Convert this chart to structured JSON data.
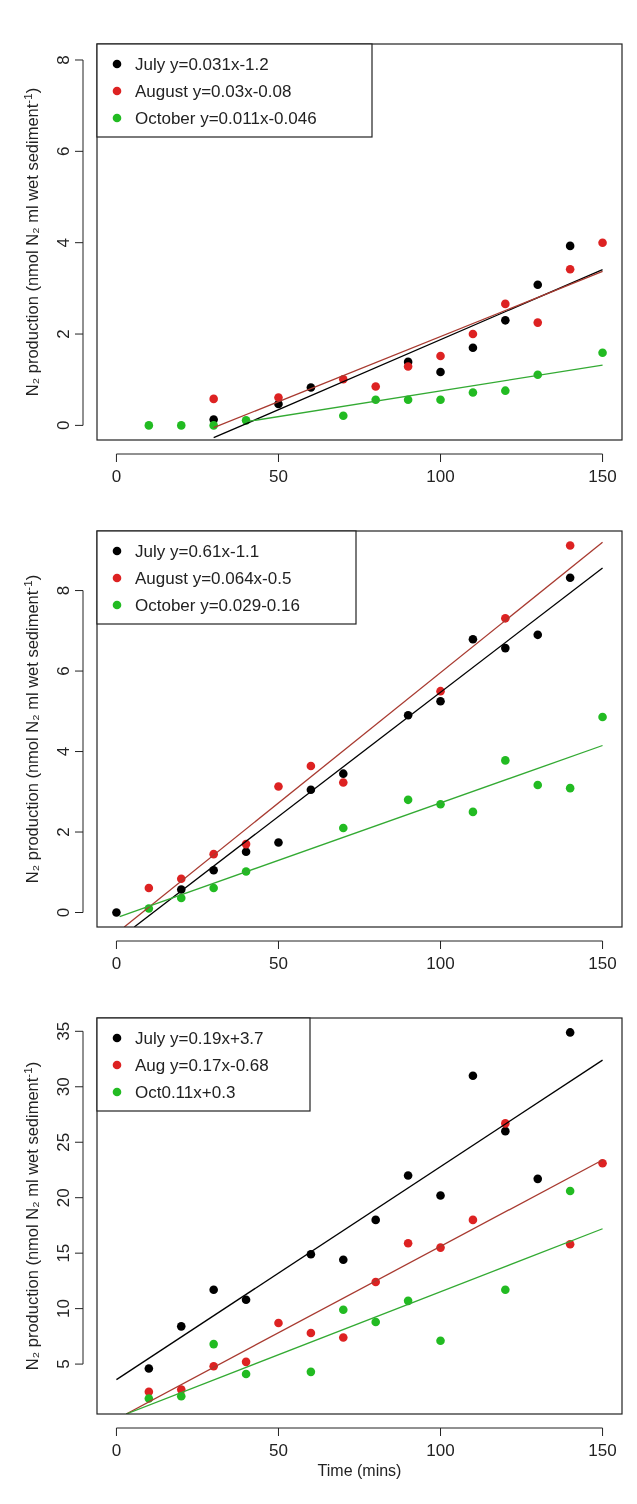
{
  "chart_data": [
    {
      "type": "scatter",
      "ylabel": "N₂ production  (nmol N₂ ml wet sediment$^{-1}$)",
      "xlim": [
        -6,
        156
      ],
      "ylim": [
        -0.32,
        8.35
      ],
      "xticks": [
        0,
        50,
        100,
        150
      ],
      "yticks": [
        0,
        2,
        4,
        6,
        8
      ],
      "legend": "top left",
      "series": [
        {
          "name": "July y=0.031x-1.2",
          "color": "#000000",
          "marker": "circle",
          "x": [
            30,
            50,
            60,
            90,
            100,
            110,
            120,
            130,
            140
          ],
          "values": [
            0.13,
            0.47,
            0.83,
            1.39,
            1.17,
            1.7,
            2.3,
            3.08,
            3.93
          ]
        },
        {
          "name": "August y=0.03x-0.08",
          "color": "#dd2222",
          "marker": "circle",
          "x": [
            30,
            50,
            70,
            80,
            90,
            100,
            110,
            120,
            130,
            140,
            150
          ],
          "values": [
            0.58,
            0.61,
            1.01,
            0.85,
            1.29,
            1.52,
            2.0,
            2.66,
            2.25,
            3.42,
            4.0
          ]
        },
        {
          "name": "October y=0.011x-0.046",
          "color": "#22bb22",
          "marker": "circle",
          "x": [
            10,
            20,
            30,
            40,
            70,
            80,
            90,
            100,
            110,
            120,
            130,
            150
          ],
          "values": [
            0,
            0,
            0,
            0.11,
            0.21,
            0.56,
            0.56,
            0.56,
            0.72,
            0.76,
            1.11,
            1.59
          ]
        },
        {
          "type": "line",
          "color": "#000000",
          "x": [
            30,
            150
          ],
          "values": [
            -0.27,
            3.41
          ]
        },
        {
          "type": "line",
          "color": "#a83a30",
          "x": [
            30,
            150
          ],
          "values": [
            -0.05,
            3.37
          ]
        },
        {
          "type": "line",
          "color": "#33aa33",
          "x": [
            40,
            150
          ],
          "values": [
            0.08,
            1.32
          ]
        }
      ]
    },
    {
      "type": "scatter",
      "ylabel": "N₂ production  (nmol N₂ ml wet sediment$^{-1}$)",
      "xlim": [
        -6,
        156
      ],
      "ylim": [
        -0.36,
        9.48
      ],
      "xticks": [
        0,
        50,
        100,
        150
      ],
      "yticks": [
        0,
        2,
        4,
        6,
        8
      ],
      "legend": "top left",
      "series": [
        {
          "name": "July y=0.61x-1.1",
          "color": "#000000",
          "marker": "circle",
          "x": [
            0,
            20,
            30,
            40,
            50,
            60,
            70,
            90,
            100,
            110,
            120,
            130,
            140
          ],
          "values": [
            0,
            0.57,
            1.05,
            1.51,
            1.74,
            3.05,
            3.45,
            4.9,
            5.25,
            6.79,
            6.57,
            6.9,
            8.32
          ]
        },
        {
          "name": "August y=0.064x-0.5",
          "color": "#dd2222",
          "marker": "circle",
          "x": [
            10,
            20,
            30,
            40,
            50,
            60,
            70,
            100,
            120,
            140
          ],
          "values": [
            0.61,
            0.84,
            1.45,
            1.7,
            3.13,
            3.64,
            3.23,
            5.5,
            7.31,
            9.12
          ]
        },
        {
          "name": "October y=0.029-0.16",
          "color": "#22bb22",
          "marker": "circle",
          "x": [
            10,
            20,
            30,
            40,
            70,
            90,
            100,
            110,
            120,
            130,
            140,
            150
          ],
          "values": [
            0.1,
            0.36,
            0.61,
            1.02,
            2.1,
            2.8,
            2.69,
            2.5,
            3.78,
            3.17,
            3.09,
            4.86
          ]
        },
        {
          "type": "line",
          "color": "#000000",
          "x": [
            5.5,
            150
          ],
          "values": [
            -0.36,
            8.56
          ]
        },
        {
          "type": "line",
          "color": "#a83a30",
          "x": [
            2.4,
            150
          ],
          "values": [
            -0.36,
            9.2
          ]
        },
        {
          "type": "line",
          "color": "#33aa33",
          "x": [
            1,
            150
          ],
          "values": [
            -0.1,
            4.15
          ]
        }
      ]
    },
    {
      "type": "scatter",
      "xlabel": "Time (mins)",
      "ylabel": "N₂ production  (nmol N₂ ml wet sediment$^{-1}$)",
      "xlim": [
        -6,
        156
      ],
      "ylim": [
        0.5,
        36.2
      ],
      "xticks": [
        0,
        50,
        100,
        150
      ],
      "yticks": [
        5,
        10,
        15,
        20,
        25,
        30,
        35
      ],
      "legend": "top left",
      "series": [
        {
          "name": "July y=0.19x+3.7",
          "color": "#000000",
          "marker": "circle",
          "x": [
            10,
            20,
            30,
            40,
            60,
            70,
            80,
            90,
            100,
            110,
            120,
            130,
            140
          ],
          "values": [
            4.6,
            8.4,
            11.7,
            10.8,
            14.9,
            14.4,
            18.0,
            22.0,
            20.2,
            31.0,
            26.0,
            21.7,
            34.9
          ]
        },
        {
          "name": "Aug y=0.17x-0.68",
          "color": "#dd2222",
          "marker": "circle",
          "x": [
            10,
            20,
            30,
            40,
            50,
            60,
            70,
            80,
            90,
            100,
            110,
            120,
            140,
            150
          ],
          "values": [
            2.5,
            2.7,
            4.8,
            5.2,
            8.7,
            7.8,
            7.4,
            12.4,
            15.9,
            15.5,
            18.0,
            26.7,
            15.8,
            23.1
          ]
        },
        {
          "name": "Oct0.11x+0.3",
          "color": "#22bb22",
          "marker": "circle",
          "x": [
            10,
            20,
            30,
            40,
            60,
            70,
            80,
            90,
            100,
            120,
            140
          ],
          "values": [
            1.9,
            2.1,
            6.8,
            4.1,
            4.3,
            9.9,
            8.8,
            10.7,
            7.1,
            11.7,
            20.6
          ]
        },
        {
          "type": "line",
          "color": "#000000",
          "x": [
            0,
            150
          ],
          "values": [
            3.6,
            32.4
          ]
        },
        {
          "type": "line",
          "color": "#a83a30",
          "x": [
            3,
            150
          ],
          "values": [
            0.5,
            23.4
          ]
        },
        {
          "type": "line",
          "color": "#33aa33",
          "x": [
            3,
            150
          ],
          "values": [
            0.5,
            17.2
          ]
        }
      ]
    }
  ]
}
